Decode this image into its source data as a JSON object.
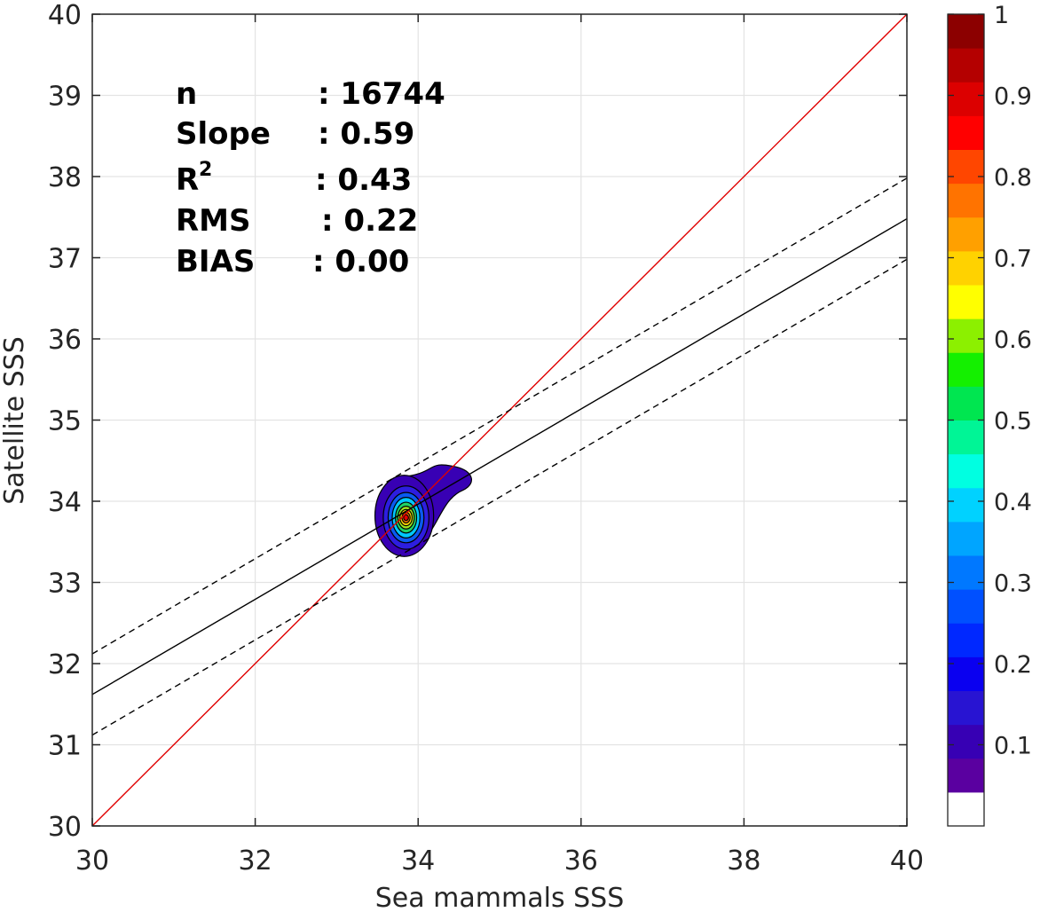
{
  "chart_data": {
    "type": "scatter",
    "subtype": "density-contour",
    "xlabel": "Sea mammals SSS",
    "ylabel": "Satellite SSS",
    "xlim": [
      30,
      40
    ],
    "ylim": [
      30,
      40
    ],
    "xticks": [
      "30",
      "32",
      "34",
      "36",
      "38",
      "40"
    ],
    "yticks": [
      "30",
      "31",
      "32",
      "33",
      "34",
      "35",
      "36",
      "37",
      "38",
      "39",
      "40"
    ],
    "grid": true,
    "stats": [
      {
        "label": "n",
        "value": ": 16744"
      },
      {
        "label": "Slope",
        "value": ": 0.59"
      },
      {
        "label": "R",
        "sup": "2",
        "value": ": 0.43"
      },
      {
        "label": "RMS",
        "value": ": 0.22"
      },
      {
        "label": "BIAS",
        "value": ": 0.00"
      }
    ],
    "lines": [
      {
        "role": "one-to-one",
        "color": "#e00000",
        "style": "solid",
        "points": [
          [
            30,
            30
          ],
          [
            40,
            40
          ]
        ]
      },
      {
        "role": "regression",
        "color": "#000000",
        "style": "solid",
        "points": [
          [
            30,
            31.62
          ],
          [
            40,
            37.48
          ]
        ]
      },
      {
        "role": "regression-upper",
        "color": "#000000",
        "style": "dashed",
        "points": [
          [
            30,
            32.12
          ],
          [
            40,
            37.98
          ]
        ]
      },
      {
        "role": "regression-lower",
        "color": "#000000",
        "style": "dashed",
        "points": [
          [
            30,
            31.12
          ],
          [
            40,
            36.98
          ]
        ]
      }
    ],
    "density": {
      "center": [
        33.83,
        33.82
      ],
      "rings": [
        {
          "level": 0.05,
          "color": "#3800b4",
          "rx": 0.36,
          "ry": 0.5,
          "tail": [
            34.62,
            34.27
          ]
        },
        {
          "level": 0.15,
          "color": "#2d1ee0",
          "rx": 0.28,
          "ry": 0.39
        },
        {
          "level": 0.25,
          "color": "#0a5af0",
          "rx": 0.22,
          "ry": 0.31
        },
        {
          "level": 0.35,
          "color": "#00c8ff",
          "rx": 0.17,
          "ry": 0.25
        },
        {
          "level": 0.45,
          "color": "#1ed264",
          "rx": 0.13,
          "ry": 0.19
        },
        {
          "level": 0.55,
          "color": "#a0e61e",
          "rx": 0.1,
          "ry": 0.14
        },
        {
          "level": 0.65,
          "color": "#ffd200",
          "rx": 0.075,
          "ry": 0.1
        },
        {
          "level": 0.75,
          "color": "#ff7800",
          "rx": 0.05,
          "ry": 0.065
        },
        {
          "level": 0.85,
          "color": "#e60000",
          "rx": 0.03,
          "ry": 0.035
        }
      ]
    },
    "colorbar": {
      "range": [
        0,
        1
      ],
      "ticks": [
        "0.1",
        "0.2",
        "0.3",
        "0.4",
        "0.5",
        "0.6",
        "0.7",
        "0.8",
        "0.9",
        "1"
      ],
      "colors": [
        "#ffffff",
        "#5a00a0",
        "#3700b4",
        "#2814d2",
        "#0a00f0",
        "#0028ff",
        "#0050ff",
        "#0078ff",
        "#00a5ff",
        "#00d2ff",
        "#00ffe1",
        "#00f596",
        "#00e650",
        "#14f000",
        "#8cf000",
        "#ffff00",
        "#ffd200",
        "#ffa000",
        "#ff7300",
        "#ff4600",
        "#ff0000",
        "#dc0000",
        "#b40000",
        "#8c0000"
      ]
    }
  }
}
